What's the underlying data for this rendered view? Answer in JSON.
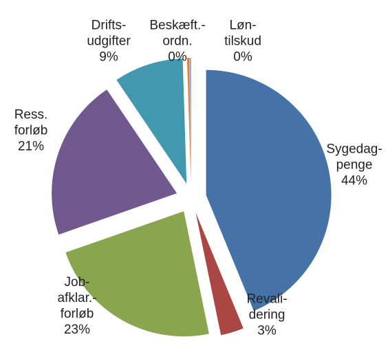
{
  "chart_data": {
    "type": "pie",
    "categories": [
      "Sygedag-\npenge",
      "Revali-\ndering",
      "Job-\nafklar.-\nforløb",
      "Ress.\nforløb",
      "Drifts-\nudgifter",
      "Beskæft.-\nordn.",
      "Løn-\ntilskud"
    ],
    "values": [
      44,
      3,
      23,
      21,
      9,
      0.3,
      0.2
    ],
    "value_labels": [
      "44%",
      "3%",
      "23%",
      "21%",
      "9%",
      "0%",
      "0%"
    ],
    "colors": [
      "#4572a7",
      "#aa4643",
      "#89a54e",
      "#71588f",
      "#4198af",
      "#db843d",
      "#93a9cf"
    ],
    "legend": false
  }
}
